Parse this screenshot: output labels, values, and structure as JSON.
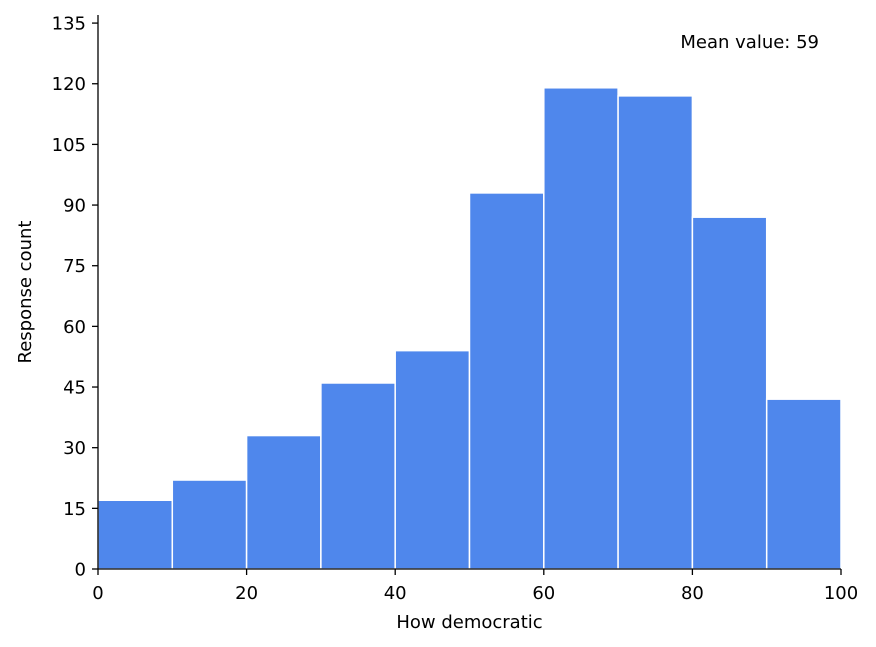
{
  "chart_data": {
    "type": "histogram",
    "title": "",
    "xlabel": "How democratic",
    "ylabel": "Response count",
    "annotation": "Mean value: 59",
    "bin_edges": [
      0,
      10,
      20,
      30,
      40,
      50,
      60,
      70,
      80,
      90,
      100
    ],
    "values": [
      17,
      22,
      33,
      46,
      54,
      93,
      119,
      117,
      87,
      42
    ],
    "xlim": [
      0,
      100
    ],
    "ylim": [
      0,
      137
    ],
    "xticks": [
      0,
      20,
      40,
      60,
      80,
      100
    ],
    "yticks": [
      0,
      15,
      30,
      45,
      60,
      75,
      90,
      105,
      120,
      135
    ],
    "bar_color": "#4f87ec",
    "bar_edge_color": "#ffffff",
    "grid": false,
    "legend": "none"
  }
}
